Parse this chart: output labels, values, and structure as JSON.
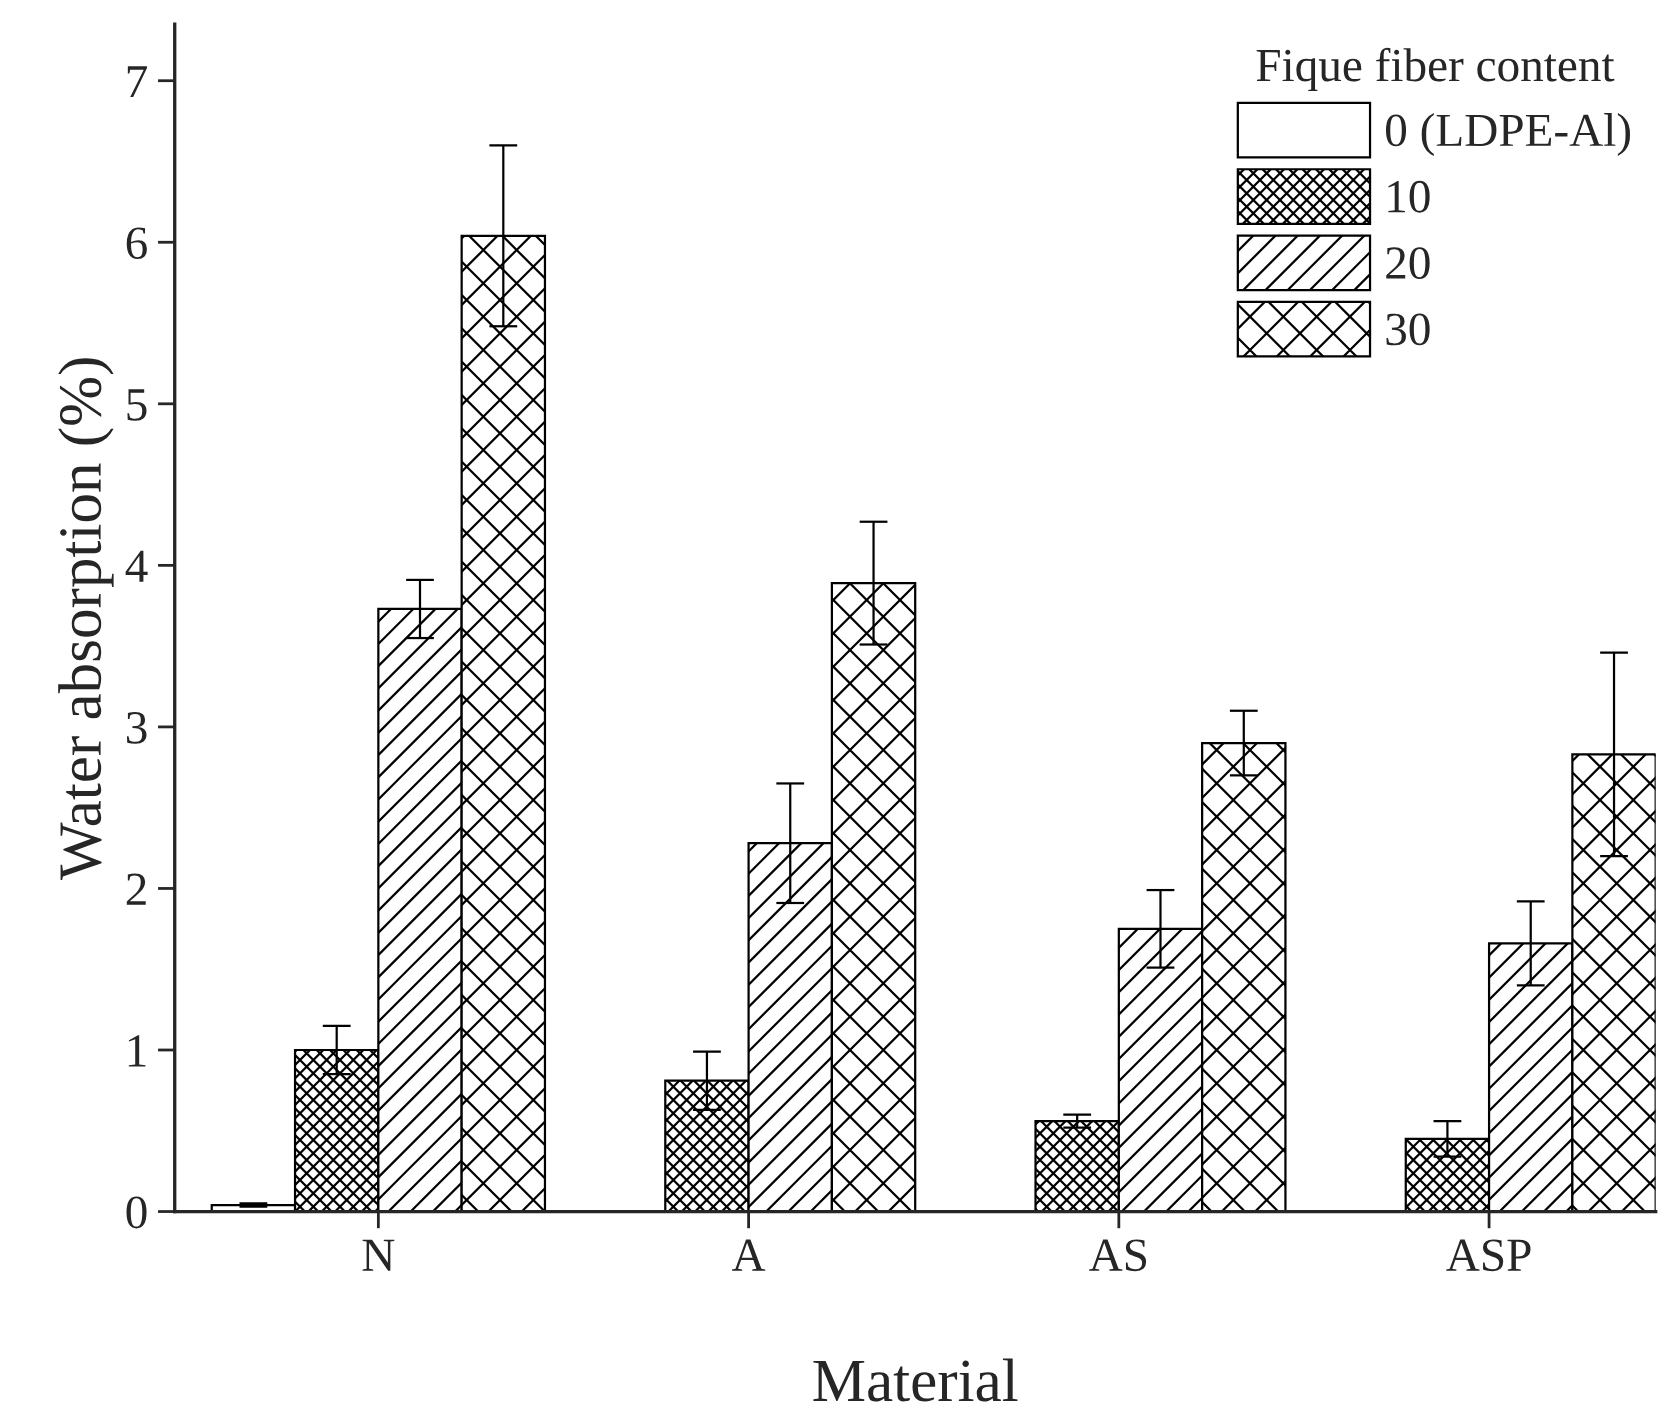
{
  "chart_data": {
    "type": "bar",
    "xlabel": "Material",
    "ylabel": "Water absorption (%)",
    "legend_title": "Fique fiber content",
    "legend": "top right",
    "categories": [
      "N",
      "A",
      "AS",
      "ASP"
    ],
    "ylim": [
      0,
      7.35
    ],
    "yticks": [
      0,
      1,
      2,
      3,
      4,
      5,
      6,
      7
    ],
    "grid": false,
    "series": [
      {
        "name": "0 (LDPE-Al)",
        "color": "#ffffff",
        "values": [
          0.04,
          null,
          null,
          null
        ],
        "errors": [
          0.01,
          null,
          null,
          null
        ]
      },
      {
        "name": "10",
        "color": "#000000",
        "values": [
          1.0,
          0.81,
          0.56,
          0.45
        ],
        "errors": [
          0.15,
          0.18,
          0.04,
          0.11
        ]
      },
      {
        "name": "20",
        "color": "#000000",
        "values": [
          3.73,
          2.28,
          1.75,
          1.66
        ],
        "errors": [
          0.18,
          0.37,
          0.24,
          0.26
        ]
      },
      {
        "name": "30",
        "color": "#000000",
        "values": [
          6.04,
          3.89,
          2.9,
          2.83
        ],
        "errors": [
          0.56,
          0.38,
          0.2,
          0.63
        ]
      }
    ]
  }
}
